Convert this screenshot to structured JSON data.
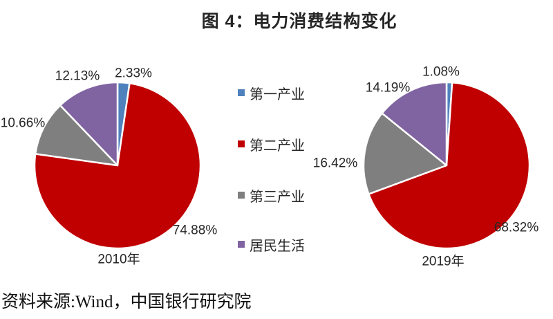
{
  "title": "图 4：电力消费结构变化",
  "source_note": "资料来源:Wind，中国银行研究院",
  "colors": {
    "primary_industry": "#4F81BD",
    "secondary_industry": "#C00000",
    "tertiary_industry": "#7F7F7F",
    "residential": "#8064A2",
    "label_text": "#262626",
    "background": "#FFFFFF"
  },
  "legend": {
    "position": "center-between-pies",
    "items": [
      {
        "label": "第一产业",
        "color": "#4F81BD"
      },
      {
        "label": "第二产业",
        "color": "#C00000"
      },
      {
        "label": "第三产业",
        "color": "#7F7F7F"
      },
      {
        "label": "居民生活",
        "color": "#8064A2"
      }
    ]
  },
  "chart_data": [
    {
      "type": "pie",
      "title": "2010年",
      "categories": [
        "第一产业",
        "第二产业",
        "第三产业",
        "居民生活"
      ],
      "values": [
        2.33,
        74.88,
        10.66,
        12.13
      ],
      "labels": [
        "2.33%",
        "74.88%",
        "10.66%",
        "12.13%"
      ],
      "colors": [
        "#4F81BD",
        "#C00000",
        "#7F7F7F",
        "#8064A2"
      ],
      "start_angle_deg": 0,
      "direction": "clockwise",
      "slice_border_color": "#FFFFFF"
    },
    {
      "type": "pie",
      "title": "2019年",
      "categories": [
        "第一产业",
        "第二产业",
        "第三产业",
        "居民生活"
      ],
      "values": [
        1.08,
        68.32,
        16.42,
        14.19
      ],
      "labels": [
        "1.08%",
        "68.32%",
        "16.42%",
        "14.19%"
      ],
      "colors": [
        "#4F81BD",
        "#C00000",
        "#7F7F7F",
        "#8064A2"
      ],
      "start_angle_deg": 0,
      "direction": "clockwise",
      "slice_border_color": "#FFFFFF"
    }
  ]
}
